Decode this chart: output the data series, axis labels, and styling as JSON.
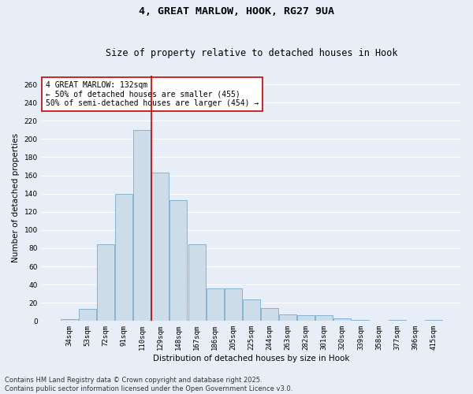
{
  "title_line1": "4, GREAT MARLOW, HOOK, RG27 9UA",
  "title_line2": "Size of property relative to detached houses in Hook",
  "xlabel": "Distribution of detached houses by size in Hook",
  "ylabel": "Number of detached properties",
  "categories": [
    "34sqm",
    "53sqm",
    "72sqm",
    "91sqm",
    "110sqm",
    "129sqm",
    "148sqm",
    "167sqm",
    "186sqm",
    "205sqm",
    "225sqm",
    "244sqm",
    "263sqm",
    "282sqm",
    "301sqm",
    "320sqm",
    "339sqm",
    "358sqm",
    "377sqm",
    "396sqm",
    "415sqm"
  ],
  "values": [
    2,
    13,
    84,
    140,
    210,
    163,
    133,
    84,
    36,
    36,
    24,
    14,
    7,
    6,
    6,
    3,
    1,
    0,
    1,
    0,
    1
  ],
  "bar_color": "#ccdce8",
  "bar_edge_color": "#7aaac8",
  "vline_x_index": 4.5,
  "vline_color": "#cc0000",
  "annotation_text": "4 GREAT MARLOW: 132sqm\n← 50% of detached houses are smaller (455)\n50% of semi-detached houses are larger (454) →",
  "annotation_box_color": "#ffffff",
  "annotation_box_edge": "#cc0000",
  "ylim": [
    0,
    270
  ],
  "yticks": [
    0,
    20,
    40,
    60,
    80,
    100,
    120,
    140,
    160,
    180,
    200,
    220,
    240,
    260
  ],
  "background_color": "#e8eef8",
  "grid_color": "#ffffff",
  "footer_text": "Contains HM Land Registry data © Crown copyright and database right 2025.\nContains public sector information licensed under the Open Government Licence v3.0.",
  "title_fontsize": 9.5,
  "subtitle_fontsize": 8.5,
  "axis_label_fontsize": 7.5,
  "tick_fontsize": 6.5,
  "annotation_fontsize": 7,
  "footer_fontsize": 6
}
